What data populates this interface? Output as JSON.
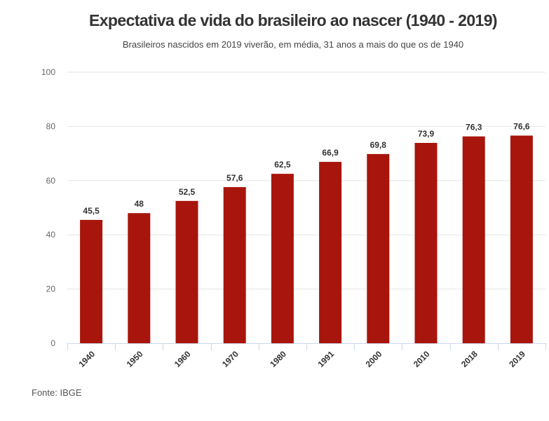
{
  "chart_data": {
    "type": "bar",
    "title": "Expectativa de vida do brasileiro ao nascer (1940 - 2019)",
    "subtitle": "Brasileiros nascidos em 2019 viverão, em média, 31 anos a mais do que os de 1940",
    "source": "Fonte: IBGE",
    "categories": [
      "1940",
      "1950",
      "1960",
      "1970",
      "1980",
      "1991",
      "2000",
      "2010",
      "2018",
      "2019"
    ],
    "values": [
      45.5,
      48,
      52.5,
      57.6,
      62.5,
      66.9,
      69.8,
      73.9,
      76.3,
      76.6
    ],
    "data_labels": [
      "45,5",
      "48",
      "52,5",
      "57,6",
      "62,5",
      "66,9",
      "69,8",
      "73,9",
      "76,3",
      "76,6"
    ],
    "yticks": [
      0,
      20,
      40,
      60,
      80,
      100
    ],
    "ylim": [
      0,
      100
    ],
    "xlabel": "",
    "ylabel": "",
    "grid": true,
    "legend": "none",
    "bar_color": "#a8150c",
    "grid_color": "#e6e6e6",
    "axis_color": "#ccd6eb"
  }
}
